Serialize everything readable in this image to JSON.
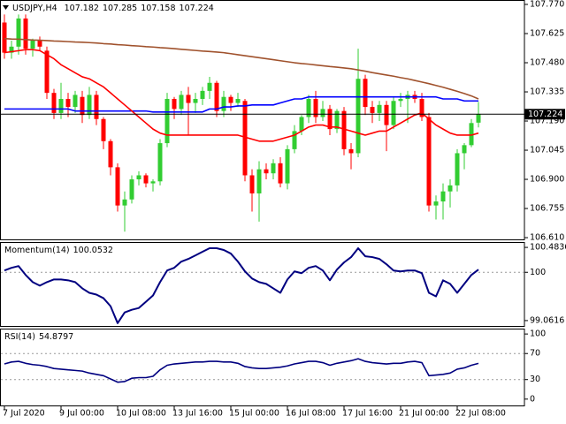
{
  "chart_data": [
    {
      "type": "candlestick",
      "title": "USDJPY,H4",
      "open": [
        107.68,
        107.53,
        107.56,
        107.7,
        107.55,
        107.59,
        107.54,
        107.33,
        107.23,
        107.3,
        107.26,
        107.31,
        107.22,
        107.32,
        107.2,
        107.09,
        106.96,
        106.77,
        106.8,
        106.9,
        106.92,
        106.88,
        106.89,
        107.08,
        107.3,
        107.25,
        107.32,
        107.28,
        107.3,
        107.34,
        107.38,
        107.24,
        107.31,
        107.28,
        107.29,
        106.92,
        106.83,
        106.95,
        106.93,
        106.98,
        106.88,
        107.05,
        107.14,
        107.21,
        107.3,
        107.21,
        107.25,
        107.15,
        107.24,
        107.05,
        107.03,
        107.4,
        107.26,
        107.23,
        107.27,
        107.17,
        107.29,
        107.3,
        107.32,
        107.3,
        107.21,
        106.77,
        106.79,
        106.84,
        106.87,
        107.03,
        107.07,
        107.182
      ],
      "high": [
        107.72,
        107.59,
        107.72,
        107.72,
        107.6,
        107.61,
        107.56,
        107.35,
        107.38,
        107.33,
        107.34,
        107.34,
        107.36,
        107.34,
        107.21,
        107.1,
        106.98,
        106.84,
        106.92,
        106.94,
        106.93,
        106.9,
        107.1,
        107.33,
        107.31,
        107.34,
        107.36,
        107.33,
        107.36,
        107.41,
        107.39,
        107.34,
        107.32,
        107.33,
        107.3,
        106.95,
        106.99,
        106.98,
        107.0,
        107.01,
        107.07,
        107.17,
        107.22,
        107.32,
        107.34,
        107.29,
        107.27,
        107.25,
        107.26,
        107.08,
        107.55,
        107.42,
        107.29,
        107.29,
        107.29,
        107.31,
        107.33,
        107.34,
        107.34,
        107.33,
        107.23,
        106.82,
        106.88,
        106.9,
        107.05,
        107.08,
        107.2,
        107.285
      ],
      "low": [
        107.5,
        107.5,
        107.52,
        107.52,
        107.51,
        107.54,
        107.3,
        107.2,
        107.2,
        107.21,
        107.23,
        107.18,
        107.2,
        107.17,
        107.05,
        106.92,
        106.74,
        106.64,
        106.78,
        106.87,
        106.86,
        106.84,
        106.87,
        107.06,
        107.2,
        107.22,
        107.12,
        107.23,
        107.27,
        107.3,
        107.21,
        107.21,
        107.24,
        107.26,
        106.89,
        106.74,
        106.69,
        106.9,
        106.9,
        106.86,
        106.85,
        107.03,
        107.12,
        107.18,
        107.18,
        107.19,
        107.12,
        107.13,
        107.02,
        106.95,
        107.01,
        107.22,
        107.18,
        107.19,
        107.04,
        107.15,
        107.26,
        107.18,
        107.28,
        107.19,
        106.74,
        106.7,
        106.7,
        106.76,
        106.84,
        106.95,
        107.06,
        107.158
      ],
      "close": [
        107.53,
        107.56,
        107.7,
        107.55,
        107.59,
        107.56,
        107.33,
        107.23,
        107.3,
        107.26,
        107.32,
        107.22,
        107.32,
        107.2,
        107.09,
        106.96,
        106.77,
        106.8,
        106.9,
        106.92,
        106.88,
        106.89,
        107.08,
        107.3,
        107.25,
        107.32,
        107.28,
        107.3,
        107.34,
        107.38,
        107.24,
        107.31,
        107.28,
        107.3,
        106.92,
        106.83,
        106.95,
        106.93,
        106.98,
        106.88,
        107.05,
        107.14,
        107.21,
        107.3,
        107.21,
        107.25,
        107.15,
        107.24,
        107.05,
        107.03,
        107.4,
        107.26,
        107.23,
        107.27,
        107.17,
        107.29,
        107.3,
        107.32,
        107.3,
        107.21,
        106.77,
        106.79,
        106.84,
        106.87,
        107.03,
        107.07,
        107.18,
        107.224
      ],
      "up_color": "#32cd32",
      "down_color": "#ff0000",
      "overlays": [
        {
          "color": "#a0522d",
          "values": [
            107.6,
            107.598,
            107.597,
            107.595,
            107.593,
            107.592,
            107.59,
            107.588,
            107.587,
            107.585,
            107.583,
            107.582,
            107.58,
            107.578,
            107.575,
            107.573,
            107.57,
            107.568,
            107.565,
            107.563,
            107.56,
            107.558,
            107.555,
            107.553,
            107.55,
            107.547,
            107.544,
            107.541,
            107.538,
            107.536,
            107.533,
            107.53,
            107.525,
            107.52,
            107.515,
            107.51,
            107.505,
            107.5,
            107.495,
            107.49,
            107.485,
            107.48,
            107.476,
            107.473,
            107.469,
            107.465,
            107.461,
            107.458,
            107.454,
            107.45,
            107.444,
            107.438,
            107.431,
            107.425,
            107.419,
            107.413,
            107.406,
            107.4,
            107.392,
            107.384,
            107.376,
            107.367,
            107.358,
            107.348,
            107.338,
            107.327,
            107.315,
            107.3
          ]
        },
        {
          "color": "#0000ff",
          "values": [
            107.25,
            107.25,
            107.25,
            107.25,
            107.25,
            107.25,
            107.25,
            107.25,
            107.25,
            107.25,
            107.24,
            107.24,
            107.24,
            107.24,
            107.24,
            107.24,
            107.24,
            107.24,
            107.24,
            107.24,
            107.24,
            107.235,
            107.235,
            107.235,
            107.235,
            107.235,
            107.235,
            107.235,
            107.235,
            107.25,
            107.25,
            107.26,
            107.26,
            107.265,
            107.265,
            107.27,
            107.27,
            107.27,
            107.27,
            107.28,
            107.29,
            107.3,
            107.3,
            107.31,
            107.31,
            107.31,
            107.31,
            107.31,
            107.31,
            107.31,
            107.31,
            107.31,
            107.31,
            107.31,
            107.31,
            107.31,
            107.31,
            107.31,
            107.31,
            107.31,
            107.31,
            107.31,
            107.3,
            107.3,
            107.3,
            107.29,
            107.29,
            107.29
          ]
        },
        {
          "color": "#ff0000",
          "values": [
            107.53,
            107.535,
            107.54,
            107.545,
            107.545,
            107.54,
            107.52,
            107.5,
            107.47,
            107.45,
            107.43,
            107.41,
            107.4,
            107.38,
            107.36,
            107.33,
            107.3,
            107.27,
            107.24,
            107.21,
            107.18,
            107.15,
            107.13,
            107.12,
            107.12,
            107.12,
            107.12,
            107.12,
            107.12,
            107.12,
            107.12,
            107.12,
            107.12,
            107.12,
            107.11,
            107.1,
            107.09,
            107.09,
            107.09,
            107.1,
            107.11,
            107.12,
            107.14,
            107.16,
            107.17,
            107.17,
            107.16,
            107.16,
            107.15,
            107.14,
            107.13,
            107.12,
            107.13,
            107.14,
            107.14,
            107.16,
            107.18,
            107.2,
            107.22,
            107.23,
            107.2,
            107.17,
            107.15,
            107.13,
            107.12,
            107.12,
            107.12,
            107.13
          ]
        }
      ],
      "ylim": [
        106.597,
        107.792
      ],
      "yticks": [
        {
          "value": 107.77,
          "label": "107.770"
        },
        107.625,
        {
          "value": 107.48,
          "label": "107.480"
        },
        107.335,
        {
          "value": 107.19,
          "label": "107.190"
        },
        107.045,
        {
          "value": 106.9,
          "label": "106.900"
        },
        106.755,
        {
          "value": 106.61,
          "label": "106.610"
        }
      ],
      "last_price_line": true
    },
    {
      "type": "line",
      "title": "Momentum(14)",
      "series": [
        {
          "color": "#000080",
          "values": [
            100.035,
            100.087,
            100.121,
            99.948,
            99.809,
            99.74,
            99.809,
            99.861,
            99.861,
            99.844,
            99.809,
            99.688,
            99.601,
            99.567,
            99.497,
            99.341,
            99.012,
            99.22,
            99.272,
            99.306,
            99.428,
            99.549,
            99.809,
            100.035,
            100.087,
            100.208,
            100.26,
            100.329,
            100.399,
            100.468,
            100.468,
            100.434,
            100.364,
            100.208,
            100.017,
            99.879,
            99.809,
            99.775,
            99.688,
            99.601,
            99.861,
            100.017,
            99.983,
            100.087,
            100.121,
            100.035,
            99.844,
            100.052,
            100.191,
            100.295,
            100.468,
            100.312,
            100.295,
            100.26,
            100.156,
            100.035,
            100.017,
            100.035,
            100.035,
            99.983,
            99.601,
            99.532,
            99.844,
            99.775,
            99.601,
            99.775,
            99.948,
            100.0532
          ]
        }
      ],
      "ylim": [
        98.94,
        100.588
      ],
      "yticks": [
        100.4836,
        100,
        99.0616
      ],
      "levels": [
        100
      ]
    },
    {
      "type": "line",
      "title": "RSI(14)",
      "series": [
        {
          "color": "#000080",
          "values": [
            54,
            57,
            58,
            55,
            53,
            52,
            50,
            47,
            46,
            45,
            44,
            43,
            40,
            38,
            36,
            31,
            26,
            27,
            32,
            33,
            33,
            35,
            45,
            52,
            54,
            55,
            56,
            57,
            57,
            58,
            58,
            57,
            57,
            55,
            50,
            48,
            47,
            47,
            48,
            49,
            51,
            54,
            56,
            58,
            58,
            56,
            52,
            55,
            57,
            59,
            62,
            58,
            56,
            55,
            54,
            55,
            55,
            57,
            58,
            56,
            36,
            37,
            38,
            40,
            46,
            48,
            52,
            54.8797
          ]
        }
      ],
      "ylim": [
        -11.1,
        108.3
      ],
      "yticks": [
        100,
        70,
        30,
        0
      ],
      "levels": [
        70,
        30
      ],
      "categories": [
        "7 Jul 2020",
        null,
        null,
        null,
        null,
        null,
        null,
        null,
        "9 Jul 00:00",
        null,
        null,
        null,
        null,
        null,
        null,
        null,
        "10 Jul 08:00",
        null,
        null,
        null,
        null,
        null,
        null,
        null,
        "13 Jul 16:00",
        null,
        null,
        null,
        null,
        null,
        null,
        null,
        "15 Jul 00:00",
        null,
        null,
        null,
        null,
        null,
        null,
        null,
        "16 Jul 08:00",
        null,
        null,
        null,
        null,
        null,
        null,
        null,
        "17 Jul 16:00",
        null,
        null,
        null,
        null,
        null,
        null,
        null,
        "21 Jul 00:00",
        null,
        null,
        null,
        null,
        null,
        null,
        null,
        "22 Jul 08:00",
        null,
        null,
        null
      ]
    }
  ]
}
